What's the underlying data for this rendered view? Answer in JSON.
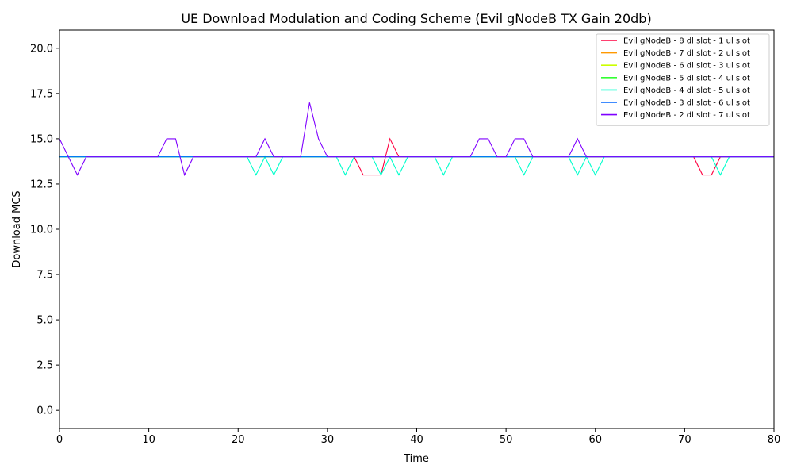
{
  "chart_data": {
    "type": "line",
    "title": "UE Download Modulation and Coding Scheme (Evil gNodeB TX Gain 20db)",
    "xlabel": "Time",
    "ylabel": "Download MCS",
    "xlim": [
      0,
      80
    ],
    "ylim": [
      -1,
      21
    ],
    "xticks": [
      0,
      10,
      20,
      30,
      40,
      50,
      60,
      70,
      80
    ],
    "yticks": [
      0.0,
      2.5,
      5.0,
      7.5,
      10.0,
      12.5,
      15.0,
      17.5,
      20.0
    ],
    "xtick_labels": [
      "0",
      "10",
      "20",
      "30",
      "40",
      "50",
      "60",
      "70",
      "80"
    ],
    "ytick_labels": [
      "0.0",
      "2.5",
      "5.0",
      "7.5",
      "10.0",
      "12.5",
      "15.0",
      "17.5",
      "20.0"
    ],
    "grid": false,
    "legend_position": "top-right",
    "x": [
      0,
      1,
      2,
      3,
      4,
      5,
      6,
      7,
      8,
      9,
      10,
      11,
      12,
      13,
      14,
      15,
      16,
      17,
      18,
      19,
      20,
      21,
      22,
      23,
      24,
      25,
      26,
      27,
      28,
      29,
      30,
      31,
      32,
      33,
      34,
      35,
      36,
      37,
      38,
      39,
      40,
      41,
      42,
      43,
      44,
      45,
      46,
      47,
      48,
      49,
      50,
      51,
      52,
      53,
      54,
      55,
      56,
      57,
      58,
      59,
      60,
      61,
      62,
      63,
      64,
      65,
      66,
      67,
      68,
      69,
      70,
      71,
      72,
      73,
      74,
      75,
      76,
      77,
      78,
      79,
      80
    ],
    "series": [
      {
        "name": "Evil gNodeB - 8 dl slot - 1 ul slot",
        "color": "#ff0040",
        "values": [
          14,
          14,
          14,
          14,
          14,
          14,
          14,
          14,
          14,
          14,
          14,
          14,
          14,
          14,
          14,
          14,
          14,
          14,
          14,
          14,
          14,
          14,
          14,
          14,
          14,
          14,
          14,
          14,
          14,
          14,
          14,
          14,
          14,
          14,
          13,
          13,
          13,
          15,
          14,
          14,
          14,
          14,
          14,
          14,
          14,
          14,
          14,
          14,
          14,
          14,
          14,
          14,
          14,
          14,
          14,
          14,
          14,
          14,
          14,
          14,
          14,
          14,
          14,
          14,
          14,
          14,
          14,
          14,
          14,
          14,
          14,
          14,
          13,
          13,
          14,
          14,
          14,
          14,
          14,
          14,
          14
        ]
      },
      {
        "name": "Evil gNodeB - 7 dl slot - 2 ul slot",
        "color": "#ff9900",
        "values": [
          14,
          14,
          14,
          14,
          14,
          14,
          14,
          14,
          14,
          14,
          14,
          14,
          14,
          14,
          14,
          14,
          14,
          14,
          14,
          14,
          14,
          14,
          14,
          14,
          14,
          14,
          14,
          14,
          14,
          14,
          14,
          14,
          14,
          14,
          14,
          14,
          14,
          14,
          14,
          14,
          14,
          14,
          14,
          14,
          14,
          14,
          14,
          14,
          14,
          14,
          14,
          14,
          14,
          14,
          14,
          14,
          14,
          14,
          14,
          14,
          14,
          14,
          14,
          14,
          14,
          14,
          14,
          14,
          14,
          14,
          14,
          14,
          14,
          14,
          14,
          14,
          14,
          14,
          14,
          14,
          14
        ]
      },
      {
        "name": "Evil gNodeB - 6 dl slot - 3 ul slot",
        "color": "#ccff00",
        "values": [
          14,
          14,
          14,
          14,
          14,
          14,
          14,
          14,
          14,
          14,
          14,
          14,
          14,
          14,
          14,
          14,
          14,
          14,
          14,
          14,
          14,
          14,
          14,
          14,
          14,
          14,
          14,
          14,
          14,
          14,
          14,
          14,
          14,
          14,
          14,
          14,
          14,
          14,
          14,
          14,
          14,
          14,
          14,
          14,
          14,
          14,
          14,
          14,
          14,
          14,
          14,
          14,
          14,
          14,
          14,
          14,
          14,
          14,
          14,
          14,
          14,
          14,
          14,
          14,
          14,
          14,
          14,
          14,
          14,
          14,
          14,
          14,
          14,
          14,
          14,
          14,
          14,
          14,
          14,
          14,
          14
        ]
      },
      {
        "name": "Evil gNodeB - 5 dl slot - 4 ul slot",
        "color": "#33ff33",
        "values": [
          14,
          14,
          14,
          14,
          14,
          14,
          14,
          14,
          14,
          14,
          14,
          14,
          14,
          14,
          14,
          14,
          14,
          14,
          14,
          14,
          14,
          14,
          14,
          14,
          14,
          14,
          14,
          14,
          14,
          14,
          14,
          14,
          14,
          14,
          14,
          14,
          14,
          14,
          14,
          14,
          14,
          14,
          14,
          14,
          14,
          14,
          14,
          14,
          14,
          14,
          14,
          14,
          14,
          14,
          14,
          14,
          14,
          14,
          14,
          14,
          14,
          14,
          14,
          14,
          14,
          14,
          14,
          14,
          14,
          14,
          14,
          14,
          14,
          14,
          14,
          14,
          14,
          14,
          14,
          14,
          14
        ]
      },
      {
        "name": "Evil gNodeB - 4 dl slot - 5 ul slot",
        "color": "#00ffcc",
        "values": [
          14,
          14,
          14,
          14,
          14,
          14,
          14,
          14,
          14,
          14,
          14,
          14,
          14,
          14,
          14,
          14,
          14,
          14,
          14,
          14,
          14,
          14,
          13,
          14,
          13,
          14,
          14,
          14,
          14,
          14,
          14,
          14,
          13,
          14,
          14,
          14,
          13,
          14,
          13,
          14,
          14,
          14,
          14,
          13,
          14,
          14,
          14,
          14,
          14,
          14,
          14,
          14,
          13,
          14,
          14,
          14,
          14,
          14,
          13,
          14,
          13,
          14,
          14,
          14,
          14,
          14,
          14,
          14,
          14,
          14,
          14,
          14,
          14,
          14,
          13,
          14,
          14,
          14,
          14,
          14,
          14
        ]
      },
      {
        "name": "Evil gNodeB - 3 dl slot - 6 ul slot",
        "color": "#0066ff",
        "values": [
          14,
          14,
          14,
          14,
          14,
          14,
          14,
          14,
          14,
          14,
          14,
          14,
          14,
          14,
          14,
          14,
          14,
          14,
          14,
          14,
          14,
          14,
          14,
          14,
          14,
          14,
          14,
          14,
          14,
          14,
          14,
          14,
          14,
          14,
          14,
          14,
          14,
          14,
          14,
          14,
          14,
          14,
          14,
          14,
          14,
          14,
          14,
          14,
          14,
          14,
          14,
          14,
          14,
          14,
          14,
          14,
          14,
          14,
          14,
          14,
          14,
          14,
          14,
          14,
          14,
          14,
          14,
          14,
          14,
          14,
          14,
          14,
          14,
          14,
          14,
          14,
          14,
          14,
          14,
          14,
          14
        ]
      },
      {
        "name": "Evil gNodeB - 2 dl slot - 7 ul slot",
        "color": "#7f00ff",
        "values": [
          15,
          14,
          13,
          14,
          14,
          14,
          14,
          14,
          14,
          14,
          14,
          14,
          15,
          15,
          13,
          14,
          14,
          14,
          14,
          14,
          14,
          14,
          14,
          15,
          14,
          14,
          14,
          14,
          17,
          15,
          14,
          14,
          14,
          14,
          14,
          14,
          14,
          14,
          14,
          14,
          14,
          14,
          14,
          14,
          14,
          14,
          14,
          15,
          15,
          14,
          14,
          15,
          15,
          14,
          14,
          14,
          14,
          14,
          15,
          14,
          14,
          14,
          14,
          14,
          14,
          14,
          14,
          14,
          14,
          14,
          14,
          14,
          14,
          14,
          14,
          14,
          14,
          14,
          14,
          14,
          14
        ]
      }
    ]
  }
}
